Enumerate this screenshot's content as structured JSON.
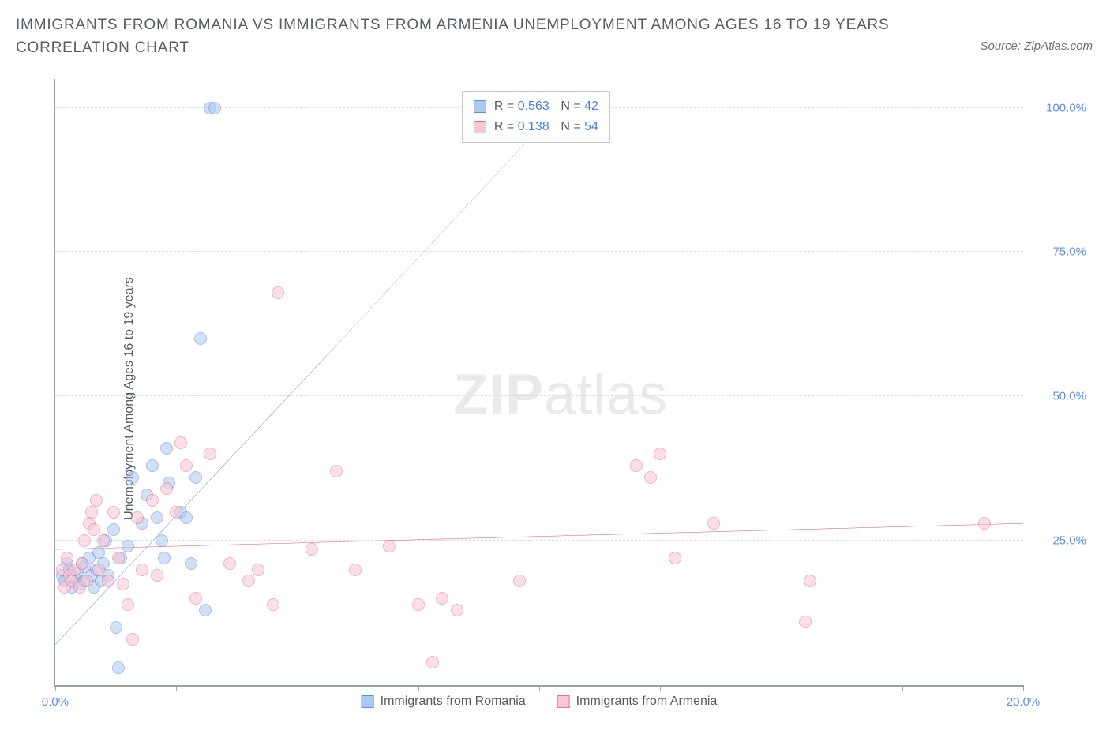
{
  "title": "IMMIGRANTS FROM ROMANIA VS IMMIGRANTS FROM ARMENIA UNEMPLOYMENT AMONG AGES 16 TO 19 YEARS CORRELATION CHART",
  "source": "Source: ZipAtlas.com",
  "watermark": {
    "bold": "ZIP",
    "rest": "atlas"
  },
  "chart": {
    "type": "scatter",
    "ylabel": "Unemployment Among Ages 16 to 19 years",
    "xlim": [
      0,
      20
    ],
    "ylim": [
      0,
      105
    ],
    "xtick_positions": [
      0,
      2.5,
      5,
      7.5,
      10,
      12.5,
      15,
      17.5,
      20
    ],
    "xtick_labels": {
      "0": "0.0%",
      "20": "20.0%"
    },
    "ytick_positions": [
      25,
      50,
      75,
      100
    ],
    "ytick_labels": {
      "25": "25.0%",
      "50": "50.0%",
      "75": "75.0%",
      "100": "100.0%"
    },
    "grid_color": "#d9dde2",
    "axis_color": "#9aa0a8",
    "background_color": "#ffffff",
    "marker_radius": 8,
    "marker_opacity": 0.55,
    "series": [
      {
        "key": "romania",
        "label": "Immigrants from Romania",
        "fill": "#aec7ec",
        "stroke": "#5b8def",
        "R": "0.563",
        "N": "42",
        "trend": {
          "x1": 0,
          "y1": 7,
          "x_solid_end": 5.6,
          "y_solid_end": 57,
          "x2": 10.4,
          "y2": 100,
          "color": "#2d5fd4",
          "width": 2
        },
        "points": [
          [
            0.15,
            19
          ],
          [
            0.2,
            18
          ],
          [
            0.25,
            21
          ],
          [
            0.3,
            20
          ],
          [
            0.35,
            17
          ],
          [
            0.4,
            18.5
          ],
          [
            0.45,
            19.5
          ],
          [
            0.5,
            17.5
          ],
          [
            0.55,
            21
          ],
          [
            0.6,
            18
          ],
          [
            0.6,
            20.5
          ],
          [
            0.7,
            22
          ],
          [
            0.75,
            19
          ],
          [
            0.8,
            17
          ],
          [
            0.85,
            20
          ],
          [
            0.9,
            23
          ],
          [
            0.95,
            18
          ],
          [
            1.0,
            21
          ],
          [
            1.05,
            25
          ],
          [
            1.1,
            19
          ],
          [
            1.2,
            27
          ],
          [
            1.25,
            10
          ],
          [
            1.3,
            3
          ],
          [
            1.35,
            22
          ],
          [
            1.5,
            24
          ],
          [
            1.6,
            36
          ],
          [
            1.8,
            28
          ],
          [
            1.9,
            33
          ],
          [
            2.0,
            38
          ],
          [
            2.1,
            29
          ],
          [
            2.2,
            25
          ],
          [
            2.25,
            22
          ],
          [
            2.3,
            41
          ],
          [
            2.35,
            35
          ],
          [
            2.6,
            30
          ],
          [
            2.7,
            29
          ],
          [
            2.8,
            21
          ],
          [
            2.9,
            36
          ],
          [
            3.0,
            60
          ],
          [
            3.2,
            100
          ],
          [
            3.3,
            100
          ],
          [
            3.1,
            13
          ]
        ]
      },
      {
        "key": "armenia",
        "label": "Immigrants from Armenia",
        "fill": "#f7c8d3",
        "stroke": "#e86f95",
        "R": "0.138",
        "N": "54",
        "trend": {
          "x1": 0,
          "y1": 23.5,
          "x2": 20,
          "y2": 28,
          "color": "#e24d7c",
          "width": 2
        },
        "points": [
          [
            0.15,
            20
          ],
          [
            0.2,
            17
          ],
          [
            0.25,
            22
          ],
          [
            0.3,
            19
          ],
          [
            0.35,
            18
          ],
          [
            0.4,
            20
          ],
          [
            0.5,
            17
          ],
          [
            0.55,
            21
          ],
          [
            0.6,
            25
          ],
          [
            0.65,
            18
          ],
          [
            0.7,
            28
          ],
          [
            0.75,
            30
          ],
          [
            0.8,
            27
          ],
          [
            0.85,
            32
          ],
          [
            0.9,
            20
          ],
          [
            1.0,
            25
          ],
          [
            1.1,
            18
          ],
          [
            1.2,
            30
          ],
          [
            1.3,
            22
          ],
          [
            1.4,
            17.5
          ],
          [
            1.5,
            14
          ],
          [
            1.6,
            8
          ],
          [
            1.7,
            29
          ],
          [
            1.8,
            20
          ],
          [
            2.0,
            32
          ],
          [
            2.1,
            19
          ],
          [
            2.3,
            34
          ],
          [
            2.5,
            30
          ],
          [
            2.6,
            42
          ],
          [
            2.7,
            38
          ],
          [
            2.9,
            15
          ],
          [
            3.2,
            40
          ],
          [
            3.6,
            21
          ],
          [
            4.0,
            18
          ],
          [
            4.2,
            20
          ],
          [
            4.5,
            14
          ],
          [
            4.6,
            68
          ],
          [
            5.3,
            23.5
          ],
          [
            5.8,
            37
          ],
          [
            6.2,
            20
          ],
          [
            7.5,
            14
          ],
          [
            7.8,
            4
          ],
          [
            8.0,
            15
          ],
          [
            8.3,
            13
          ],
          [
            9.6,
            18
          ],
          [
            12.0,
            38
          ],
          [
            12.3,
            36
          ],
          [
            12.5,
            40
          ],
          [
            12.8,
            22
          ],
          [
            13.6,
            28
          ],
          [
            15.5,
            11
          ],
          [
            15.6,
            18
          ],
          [
            19.2,
            28
          ],
          [
            6.9,
            24
          ]
        ]
      }
    ],
    "stats_box": {
      "left_pct": 42,
      "top_pct": 2
    }
  }
}
